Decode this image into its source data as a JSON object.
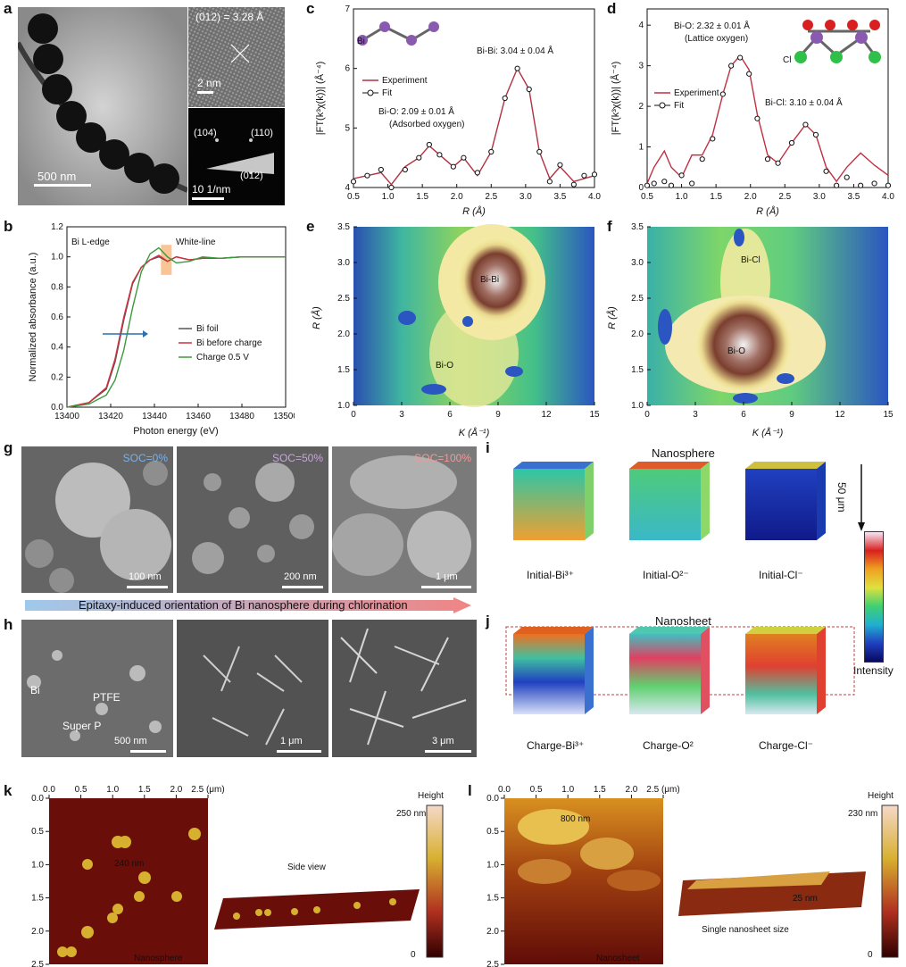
{
  "panels": {
    "a": {
      "label": "a",
      "scale_main": "500 nm",
      "hrtem": "(012) = 3.28 Å",
      "hrtem_scale": "2 nm",
      "saed_scale": "10 1/nm",
      "saed_spots": [
        "(104)",
        "(110)",
        "(012)"
      ]
    },
    "b": {
      "label": "b",
      "edge": "Bi L-edge",
      "white_line": "White-line",
      "xlabel": "Photon energy (eV)",
      "ylabel": "Normalized absorbance (a.u.)",
      "xticks": [
        "13400",
        "13420",
        "13440",
        "13460",
        "13480",
        "13500"
      ],
      "yticks": [
        "0.0",
        "0.2",
        "0.4",
        "0.6",
        "0.8",
        "1.0",
        "1.2"
      ],
      "legend": [
        "Bi foil",
        "Bi before charge",
        "Charge 0.5 V"
      ]
    },
    "c": {
      "label": "c",
      "legend": [
        "Experiment",
        "Fit"
      ],
      "peak1": "Bi-Bi: 3.04 ± 0.04 Å",
      "peak2a": "Bi-O: 2.09 ± 0.01 Å",
      "peak2b": "(Adsorbed oxygen)",
      "xlabel": "R (Å)",
      "ylabel": "|FT(k³χ(k))| (Å⁻⁴)",
      "xticks": [
        "0.5",
        "1.0",
        "1.5",
        "2.0",
        "2.5",
        "3.0",
        "3.5",
        "4.0"
      ],
      "yticks": [
        "4",
        "5",
        "6",
        "7"
      ]
    },
    "d": {
      "label": "d",
      "legend": [
        "Experiment",
        "Fit"
      ],
      "peak1a": "Bi-O: 2.32 ± 0.01 Å",
      "peak1b": "(Lattice oxygen)",
      "peak2": "Bi-Cl: 3.10 ± 0.04 Å",
      "xlabel": "R (Å)",
      "ylabel": "|FT(k³χ(k))| (Å⁻⁴)",
      "xticks": [
        "0.5",
        "1.0",
        "1.5",
        "2.0",
        "2.5",
        "3.0",
        "3.5",
        "4.0"
      ],
      "yticks": [
        "0",
        "1",
        "2",
        "3",
        "4"
      ],
      "atoms": [
        "Bi",
        "O",
        "Cl"
      ]
    },
    "e": {
      "label": "e",
      "labels": [
        "Bi-Bi",
        "Bi-O"
      ],
      "xlabel": "K (Å⁻¹)",
      "ylabel": "R (Å)",
      "xticks": [
        "0",
        "3",
        "6",
        "9",
        "12",
        "15"
      ],
      "yticks": [
        "1.0",
        "1.5",
        "2.0",
        "2.5",
        "3.0",
        "3.5"
      ]
    },
    "f": {
      "label": "f",
      "labels": [
        "Bi-Cl",
        "Bi-O"
      ],
      "xlabel": "K (Å⁻¹)",
      "ylabel": "R (Å)",
      "xticks": [
        "0",
        "3",
        "6",
        "9",
        "12",
        "15"
      ],
      "yticks": [
        "1.0",
        "1.5",
        "2.0",
        "2.5",
        "3.0",
        "3.5"
      ]
    },
    "g": {
      "label": "g",
      "soc": [
        "SOC=0%",
        "SOC=50%",
        "SOC=100%"
      ],
      "scales": [
        "100 nm",
        "200 nm",
        "1 μm"
      ]
    },
    "arrow": {
      "text": "Epitaxy-induced orientation of Bi nanosphere during chlorination"
    },
    "h": {
      "label": "h",
      "scales": [
        "500 nm",
        "1 μm",
        "3 μm"
      ],
      "labels": [
        "Bi",
        "PTFE",
        "Super P"
      ]
    },
    "i": {
      "label": "i",
      "title": "Nanosphere",
      "depth": "50 μm",
      "captions": [
        "Initial-Bi³⁺",
        "Initial-O²⁻",
        "Initial-Cl⁻"
      ]
    },
    "j": {
      "label": "j",
      "title": "Nanosheet",
      "captions": [
        "Charge-Bi³⁺",
        "Charge-O²",
        "Charge-Cl⁻"
      ],
      "intensity": "Intensity"
    },
    "k": {
      "label": "k",
      "xticks": [
        "0.0",
        "0.5",
        "1.0",
        "1.5",
        "2.0",
        "2.5 (μm)"
      ],
      "yticks": [
        "0.0",
        "0.5",
        "1.0",
        "1.5",
        "2.0",
        "2.5"
      ],
      "annot": "240 nm",
      "name": "Nanosphere",
      "side_view": "Side view",
      "height_title": "Height",
      "hmax": "250 nm",
      "hmin": "0"
    },
    "l": {
      "label": "l",
      "xticks": [
        "0.0",
        "0.5",
        "1.0",
        "1.5",
        "2.0",
        "2.5 (μm)"
      ],
      "yticks": [
        "0.0",
        "0.5",
        "1.0",
        "1.5",
        "2.0",
        "2.5"
      ],
      "annot": "800 nm",
      "annot2": "25 nm",
      "name": "Nanosheet",
      "caption": "Single nanosheet size",
      "height_title": "Height",
      "hmax": "230 nm",
      "hmin": "0"
    }
  },
  "chart_data": [
    {
      "type": "line",
      "panel": "b",
      "xlabel": "Photon energy (eV)",
      "ylabel": "Normalized absorbance (a.u.)",
      "xlim": [
        13400,
        13500
      ],
      "ylim": [
        0,
        1.2
      ],
      "x": [
        13400,
        13410,
        13418,
        13422,
        13426,
        13430,
        13434,
        13438,
        13442,
        13446,
        13450,
        13456,
        13462,
        13470,
        13480,
        13490,
        13500
      ],
      "series": [
        {
          "name": "Bi foil",
          "values": [
            0.0,
            0.03,
            0.12,
            0.3,
            0.58,
            0.82,
            0.93,
            0.98,
            1.0,
            0.97,
            1.0,
            0.98,
            0.99,
            0.99,
            1.0,
            1.0,
            1.0
          ]
        },
        {
          "name": "Bi before charge",
          "values": [
            0.0,
            0.03,
            0.13,
            0.32,
            0.6,
            0.83,
            0.93,
            0.98,
            1.01,
            0.97,
            1.0,
            0.98,
            0.99,
            0.99,
            1.0,
            1.0,
            1.0
          ]
        },
        {
          "name": "Charge 0.5 V",
          "values": [
            0.0,
            0.02,
            0.08,
            0.18,
            0.38,
            0.66,
            0.9,
            1.02,
            1.06,
            1.0,
            0.96,
            0.97,
            1.0,
            0.99,
            1.0,
            1.0,
            1.0
          ]
        }
      ]
    },
    {
      "type": "line",
      "panel": "c",
      "xlabel": "R (Å)",
      "ylabel": "|FT(k³χ(k))| (Å⁻⁴)",
      "xlim": [
        0.5,
        4.0
      ],
      "ylim": [
        4,
        7
      ],
      "x": [
        0.5,
        0.7,
        0.9,
        1.05,
        1.25,
        1.45,
        1.6,
        1.75,
        1.95,
        2.1,
        2.3,
        2.5,
        2.7,
        2.88,
        3.05,
        3.2,
        3.35,
        3.5,
        3.7,
        3.85,
        4.0
      ],
      "series": [
        {
          "name": "Experiment",
          "values": [
            4.15,
            4.2,
            4.25,
            4.05,
            4.35,
            4.5,
            4.7,
            4.55,
            4.35,
            4.5,
            4.2,
            4.6,
            5.5,
            6.0,
            5.65,
            4.6,
            4.15,
            4.35,
            4.1,
            4.15,
            4.2
          ]
        },
        {
          "name": "Fit",
          "values": [
            4.1,
            4.2,
            4.3,
            4.0,
            4.3,
            4.5,
            4.72,
            4.55,
            4.35,
            4.5,
            4.25,
            4.6,
            5.5,
            6.0,
            5.65,
            4.6,
            4.1,
            4.38,
            4.05,
            4.2,
            4.22
          ]
        }
      ]
    },
    {
      "type": "line",
      "panel": "d",
      "xlabel": "R (Å)",
      "ylabel": "|FT(k³χ(k))| (Å⁻⁴)",
      "xlim": [
        0.5,
        4.0
      ],
      "ylim": [
        0,
        4.4
      ],
      "x": [
        0.5,
        0.6,
        0.75,
        0.85,
        1.0,
        1.15,
        1.3,
        1.45,
        1.6,
        1.72,
        1.85,
        1.98,
        2.1,
        2.25,
        2.4,
        2.6,
        2.8,
        2.95,
        3.1,
        3.25,
        3.4,
        3.6,
        3.8,
        4.0
      ],
      "series": [
        {
          "name": "Experiment",
          "values": [
            0.1,
            0.5,
            0.9,
            0.5,
            0.25,
            0.8,
            0.8,
            1.3,
            2.3,
            3.0,
            3.25,
            2.9,
            1.8,
            0.8,
            0.6,
            1.1,
            1.55,
            1.3,
            0.5,
            0.15,
            0.5,
            0.85,
            0.55,
            0.3
          ]
        },
        {
          "name": "Fit",
          "values": [
            0.05,
            0.1,
            0.15,
            0.05,
            0.3,
            0.1,
            0.7,
            1.2,
            2.3,
            3.0,
            3.2,
            2.8,
            1.7,
            0.7,
            0.6,
            1.1,
            1.55,
            1.3,
            0.4,
            0.05,
            0.25,
            0.05,
            0.1,
            0.05
          ]
        }
      ]
    }
  ]
}
